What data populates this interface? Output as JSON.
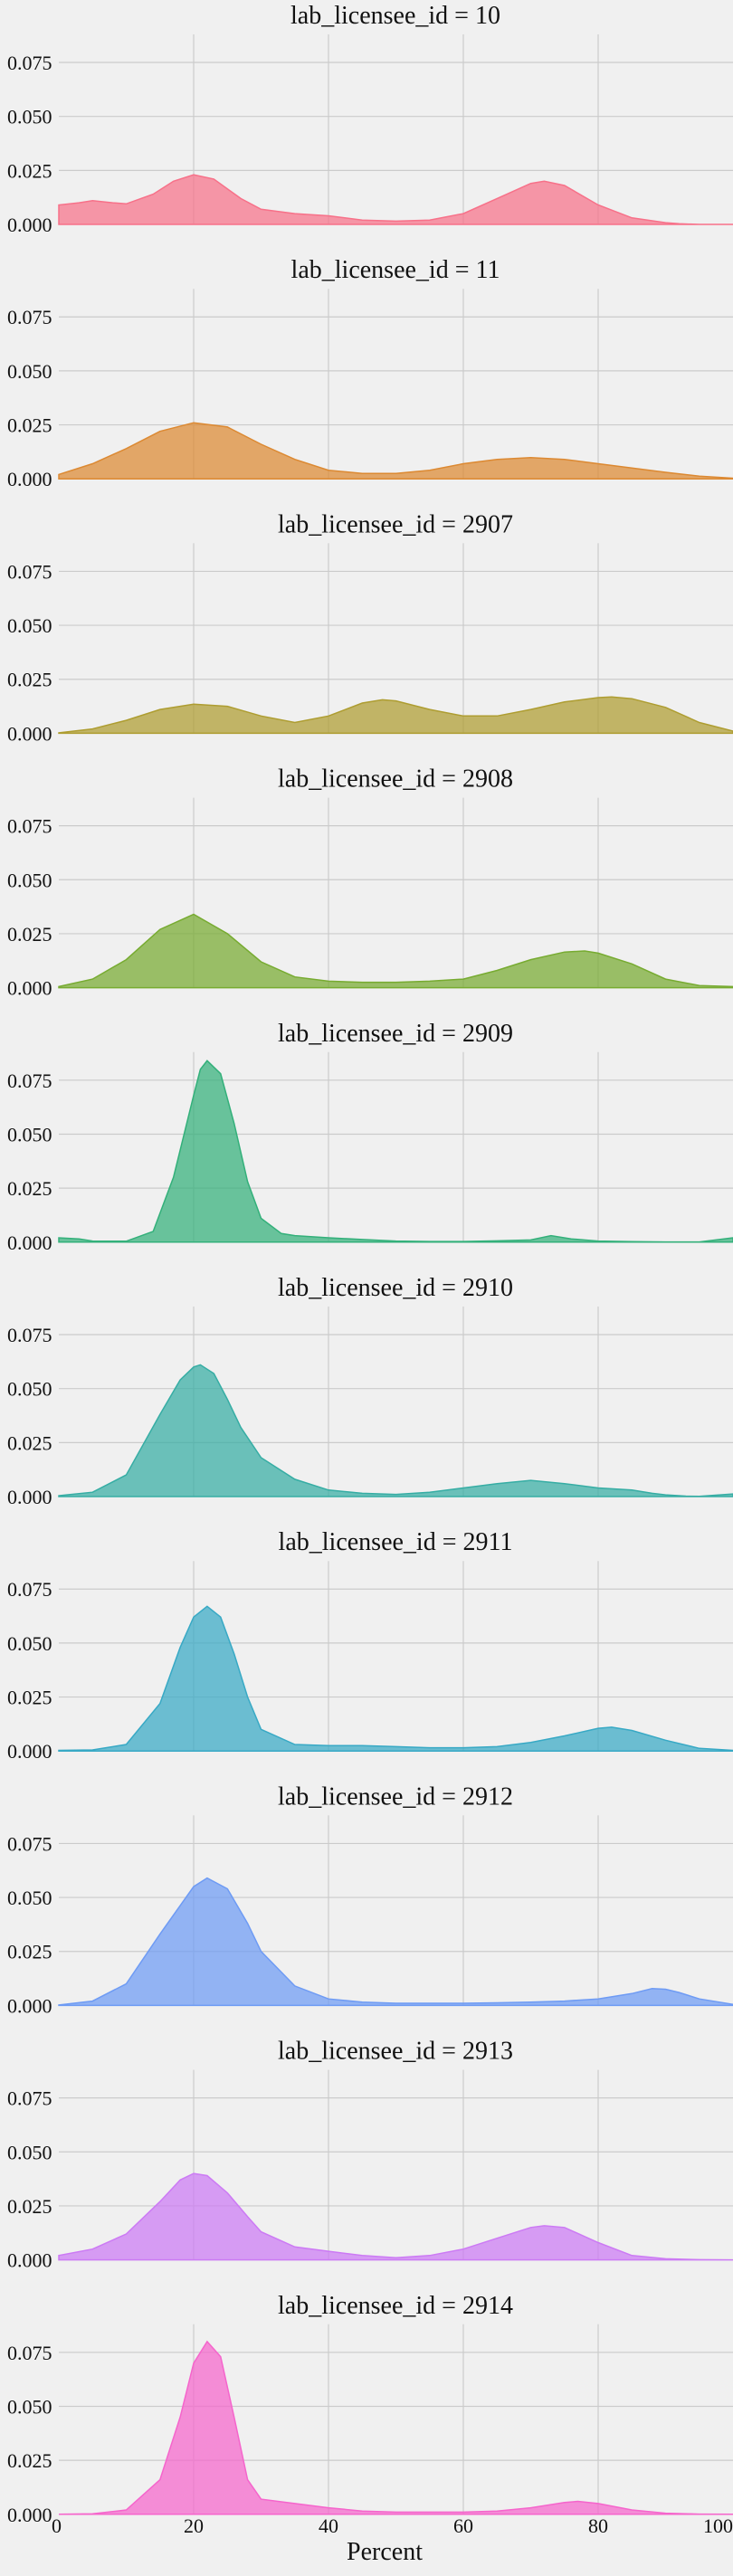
{
  "chart_data": {
    "type": "area",
    "subtype": "kde-facet-grid",
    "xlabel": "Percent",
    "ylabel": "",
    "xlim": [
      0,
      100
    ],
    "ylim": [
      0,
      0.088
    ],
    "xticks": [
      "0",
      "20",
      "40",
      "60",
      "80",
      "100"
    ],
    "yticks": [
      "0.000",
      "0.025",
      "0.050",
      "0.075"
    ],
    "grid": true,
    "facets": [
      {
        "title": "lab_licensee_id = 10",
        "color": "#f77189",
        "x": [
          0,
          3,
          5,
          8,
          10,
          14,
          17,
          20,
          23,
          27,
          30,
          35,
          40,
          45,
          50,
          55,
          60,
          65,
          70,
          72,
          75,
          80,
          85,
          90,
          92,
          95,
          100
        ],
        "y": [
          0.009,
          0.01,
          0.011,
          0.01,
          0.0095,
          0.014,
          0.02,
          0.023,
          0.021,
          0.012,
          0.007,
          0.005,
          0.004,
          0.002,
          0.0015,
          0.002,
          0.005,
          0.012,
          0.019,
          0.02,
          0.018,
          0.009,
          0.003,
          0.0008,
          0.0003,
          0.0,
          0.0
        ]
      },
      {
        "title": "lab_licensee_id = 11",
        "color": "#dc8932",
        "x": [
          0,
          5,
          10,
          15,
          20,
          25,
          30,
          35,
          40,
          45,
          50,
          55,
          60,
          65,
          70,
          75,
          80,
          85,
          90,
          95,
          100
        ],
        "y": [
          0.002,
          0.007,
          0.014,
          0.022,
          0.026,
          0.024,
          0.016,
          0.009,
          0.004,
          0.0025,
          0.0025,
          0.004,
          0.007,
          0.009,
          0.0098,
          0.009,
          0.007,
          0.005,
          0.003,
          0.0012,
          0.0003
        ]
      },
      {
        "title": "lab_licensee_id = 2907",
        "color": "#ae9d31",
        "x": [
          0,
          5,
          10,
          15,
          20,
          25,
          30,
          35,
          40,
          45,
          48,
          50,
          55,
          60,
          65,
          70,
          75,
          80,
          82,
          85,
          90,
          95,
          100
        ],
        "y": [
          0.0002,
          0.002,
          0.006,
          0.011,
          0.0135,
          0.0125,
          0.008,
          0.005,
          0.008,
          0.014,
          0.0155,
          0.015,
          0.011,
          0.008,
          0.008,
          0.011,
          0.0145,
          0.0165,
          0.0168,
          0.016,
          0.012,
          0.005,
          0.001
        ]
      },
      {
        "title": "lab_licensee_id = 2908",
        "color": "#77ab31",
        "x": [
          0,
          5,
          10,
          15,
          20,
          25,
          30,
          35,
          40,
          45,
          50,
          55,
          60,
          65,
          70,
          75,
          78,
          80,
          85,
          90,
          95,
          100
        ],
        "y": [
          0.0005,
          0.004,
          0.013,
          0.027,
          0.034,
          0.025,
          0.012,
          0.005,
          0.003,
          0.0025,
          0.0025,
          0.003,
          0.004,
          0.008,
          0.013,
          0.0165,
          0.017,
          0.016,
          0.011,
          0.004,
          0.001,
          0.0005
        ]
      },
      {
        "title": "lab_licensee_id = 2909",
        "color": "#33b07a",
        "x": [
          0,
          3,
          5,
          10,
          14,
          17,
          20,
          21,
          22,
          24,
          26,
          28,
          30,
          33,
          35,
          40,
          45,
          50,
          55,
          60,
          65,
          70,
          73,
          76,
          80,
          85,
          90,
          95,
          100
        ],
        "y": [
          0.002,
          0.0015,
          0.0005,
          0.0004,
          0.005,
          0.03,
          0.068,
          0.08,
          0.084,
          0.078,
          0.055,
          0.028,
          0.011,
          0.004,
          0.003,
          0.002,
          0.0012,
          0.0005,
          0.0003,
          0.0003,
          0.0006,
          0.001,
          0.003,
          0.0015,
          0.0005,
          0.0002,
          0.0001,
          0.0001,
          0.002
        ]
      },
      {
        "title": "lab_licensee_id = 2910",
        "color": "#36ada4",
        "x": [
          0,
          5,
          10,
          15,
          18,
          20,
          21,
          23,
          25,
          27,
          30,
          35,
          40,
          45,
          50,
          55,
          60,
          65,
          70,
          75,
          80,
          85,
          88,
          90,
          93,
          95,
          100
        ],
        "y": [
          0.0004,
          0.002,
          0.01,
          0.038,
          0.054,
          0.06,
          0.061,
          0.057,
          0.045,
          0.032,
          0.018,
          0.008,
          0.003,
          0.0015,
          0.001,
          0.002,
          0.004,
          0.006,
          0.0075,
          0.006,
          0.004,
          0.003,
          0.0015,
          0.0008,
          0.0002,
          0.0001,
          0.0012
        ]
      },
      {
        "title": "lab_licensee_id = 2911",
        "color": "#38a9c5",
        "x": [
          0,
          5,
          10,
          15,
          18,
          20,
          22,
          24,
          26,
          28,
          30,
          35,
          40,
          45,
          50,
          55,
          60,
          65,
          70,
          75,
          80,
          82,
          85,
          90,
          95,
          100
        ],
        "y": [
          0.0003,
          0.0005,
          0.003,
          0.022,
          0.048,
          0.062,
          0.067,
          0.062,
          0.045,
          0.025,
          0.01,
          0.003,
          0.0025,
          0.0025,
          0.002,
          0.0015,
          0.0015,
          0.002,
          0.004,
          0.007,
          0.0105,
          0.011,
          0.0095,
          0.005,
          0.0012,
          0.0003
        ]
      },
      {
        "title": "lab_licensee_id = 2912",
        "color": "#6e9bf4",
        "x": [
          0,
          5,
          10,
          15,
          20,
          22,
          25,
          28,
          30,
          35,
          40,
          45,
          50,
          55,
          60,
          65,
          70,
          75,
          80,
          85,
          88,
          90,
          92,
          95,
          100
        ],
        "y": [
          0.0002,
          0.002,
          0.01,
          0.033,
          0.055,
          0.059,
          0.054,
          0.038,
          0.025,
          0.009,
          0.003,
          0.0015,
          0.001,
          0.001,
          0.001,
          0.0012,
          0.0015,
          0.002,
          0.003,
          0.0055,
          0.0078,
          0.0075,
          0.006,
          0.003,
          0.0005
        ]
      },
      {
        "title": "lab_licensee_id = 2913",
        "color": "#cc7af4",
        "x": [
          0,
          5,
          10,
          15,
          18,
          20,
          22,
          25,
          28,
          30,
          35,
          40,
          45,
          50,
          55,
          60,
          65,
          70,
          72,
          75,
          80,
          85,
          90,
          95,
          100
        ],
        "y": [
          0.002,
          0.005,
          0.012,
          0.027,
          0.037,
          0.04,
          0.039,
          0.031,
          0.02,
          0.013,
          0.006,
          0.004,
          0.002,
          0.001,
          0.002,
          0.005,
          0.01,
          0.015,
          0.0158,
          0.015,
          0.008,
          0.002,
          0.0005,
          0.0001,
          0.0
        ]
      },
      {
        "title": "lab_licensee_id = 2914",
        "color": "#f565cc",
        "x": [
          0,
          5,
          10,
          15,
          18,
          20,
          22,
          24,
          26,
          28,
          30,
          35,
          40,
          45,
          50,
          55,
          60,
          65,
          70,
          75,
          77,
          80,
          85,
          90,
          95,
          100
        ],
        "y": [
          0.0,
          0.0002,
          0.002,
          0.016,
          0.045,
          0.07,
          0.08,
          0.073,
          0.045,
          0.016,
          0.007,
          0.005,
          0.003,
          0.0015,
          0.001,
          0.001,
          0.001,
          0.0015,
          0.003,
          0.0055,
          0.006,
          0.005,
          0.002,
          0.0005,
          0.0001,
          0.0
        ]
      }
    ]
  }
}
